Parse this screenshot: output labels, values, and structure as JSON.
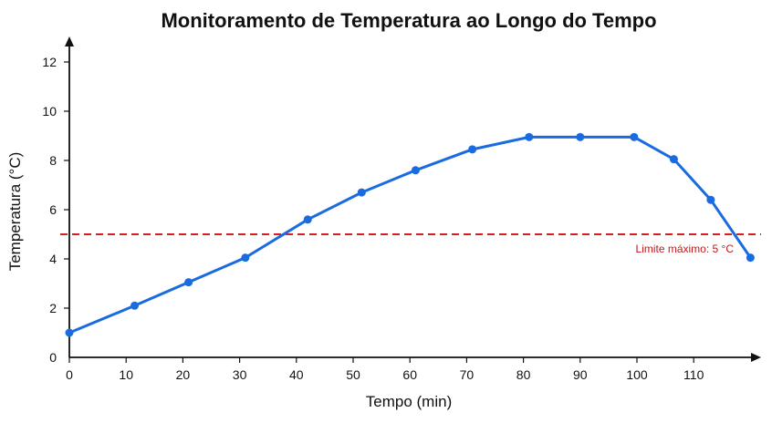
{
  "chart_data": {
    "type": "line",
    "title": "Monitoramento de Temperatura ao Longo do Tempo",
    "xlabel": "Tempo (min)",
    "ylabel": "Temperatura (°C)",
    "xlim": [
      0,
      120
    ],
    "ylim": [
      0,
      13
    ],
    "x_ticks": [
      0,
      10,
      20,
      30,
      40,
      50,
      60,
      70,
      80,
      90,
      100,
      110
    ],
    "x_tick_labels": [
      "0",
      "10",
      "20",
      "30",
      "40",
      "50",
      "60",
      "70",
      "80",
      "90",
      "100",
      "110"
    ],
    "y_ticks": [
      0,
      2,
      4,
      6,
      8,
      10,
      12
    ],
    "y_tick_labels": [
      "0",
      "2",
      "4",
      "6",
      "8",
      "10",
      "12"
    ],
    "grid": false,
    "series": [
      {
        "color": "#1a6be0",
        "x": [
          0,
          11.5,
          21,
          31,
          42,
          51.5,
          61,
          71,
          81,
          90,
          99.5,
          106.5,
          113,
          120
        ],
        "y": [
          1.0,
          2.1,
          3.05,
          4.05,
          5.6,
          6.7,
          7.6,
          8.45,
          8.95,
          8.95,
          8.95,
          8.05,
          6.4,
          4.05
        ]
      }
    ],
    "threshold": {
      "value": 5,
      "label": "Limite máximo: 5 °C",
      "color": "#d42020"
    }
  }
}
